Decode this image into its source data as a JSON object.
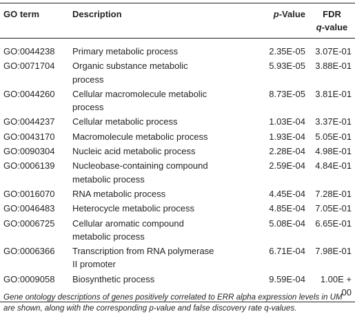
{
  "table": {
    "header": {
      "go_term": "GO term",
      "description": "Description",
      "p_value": [
        "p",
        "-Value"
      ],
      "fdr": [
        "FDR",
        [
          "q",
          "-value"
        ]
      ]
    },
    "rows": [
      [
        "GO:0044238",
        [
          "Primary metabolic process"
        ],
        "2.35E-05",
        "3.07E-01"
      ],
      [
        "GO:0071704",
        [
          "Organic substance metabolic",
          "process"
        ],
        "5.93E-05",
        "3.88E-01"
      ],
      [
        "GO:0044260",
        [
          "Cellular macromolecule metabolic",
          "process"
        ],
        "8.73E-05",
        "3.81E-01"
      ],
      [
        "GO:0044237",
        [
          "Cellular metabolic process"
        ],
        "1.03E-04",
        "3.37E-01"
      ],
      [
        "GO:0043170",
        [
          "Macromolecule metabolic process"
        ],
        "1.93E-04",
        "5.05E-01"
      ],
      [
        "GO:0090304",
        [
          "Nucleic acid metabolic process"
        ],
        "2.28E-04",
        "4.98E-01"
      ],
      [
        "GO:0006139",
        [
          "Nucleobase-containing compound",
          "metabolic process"
        ],
        "2.59E-04",
        "4.84E-01"
      ],
      [
        "GO:0016070",
        [
          "RNA metabolic process"
        ],
        "4.45E-04",
        "7.28E-01"
      ],
      [
        "GO:0046483",
        [
          "Heterocycle metabolic process"
        ],
        "4.85E-04",
        "7.05E-01"
      ],
      [
        "GO:0006725",
        [
          "Cellular aromatic compound",
          "metabolic process"
        ],
        "5.08E-04",
        "6.65E-01"
      ],
      [
        "GO:0006366",
        [
          "Transcription from RNA polymerase",
          "II promoter"
        ],
        "6.71E-04",
        "7.98E-01"
      ],
      [
        "GO:0009058",
        [
          "Biosynthetic process"
        ],
        "9.59E-04",
        "1.00E + 00"
      ]
    ],
    "footnote": "Gene ontology descriptions of genes positively correlated to ERR alpha expression levels in UM are shown, along with the corresponding p-value and false discovery rate q-values."
  }
}
